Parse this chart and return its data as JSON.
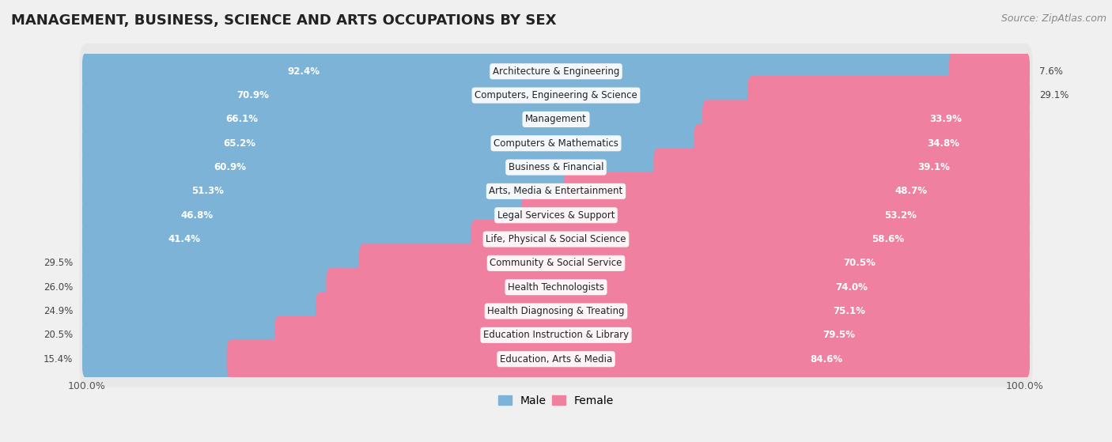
{
  "title": "MANAGEMENT, BUSINESS, SCIENCE AND ARTS OCCUPATIONS BY SEX",
  "source": "Source: ZipAtlas.com",
  "categories": [
    "Architecture & Engineering",
    "Computers, Engineering & Science",
    "Management",
    "Computers & Mathematics",
    "Business & Financial",
    "Arts, Media & Entertainment",
    "Legal Services & Support",
    "Life, Physical & Social Science",
    "Community & Social Service",
    "Health Technologists",
    "Health Diagnosing & Treating",
    "Education Instruction & Library",
    "Education, Arts & Media"
  ],
  "male_pct": [
    92.4,
    70.9,
    66.1,
    65.2,
    60.9,
    51.3,
    46.8,
    41.4,
    29.5,
    26.0,
    24.9,
    20.5,
    15.4
  ],
  "female_pct": [
    7.6,
    29.1,
    33.9,
    34.8,
    39.1,
    48.7,
    53.2,
    58.6,
    70.5,
    74.0,
    75.1,
    79.5,
    84.6
  ],
  "male_color": "#7eb3d8",
  "female_color": "#f080a0",
  "bg_color": "#f0f0f0",
  "row_bg_color": "#e0e0e0",
  "bar_height": 0.62,
  "title_fontsize": 13,
  "label_fontsize": 8.5,
  "tick_fontsize": 9,
  "source_fontsize": 9,
  "legend_fontsize": 10,
  "male_label_threshold": 30,
  "female_label_threshold": 30
}
